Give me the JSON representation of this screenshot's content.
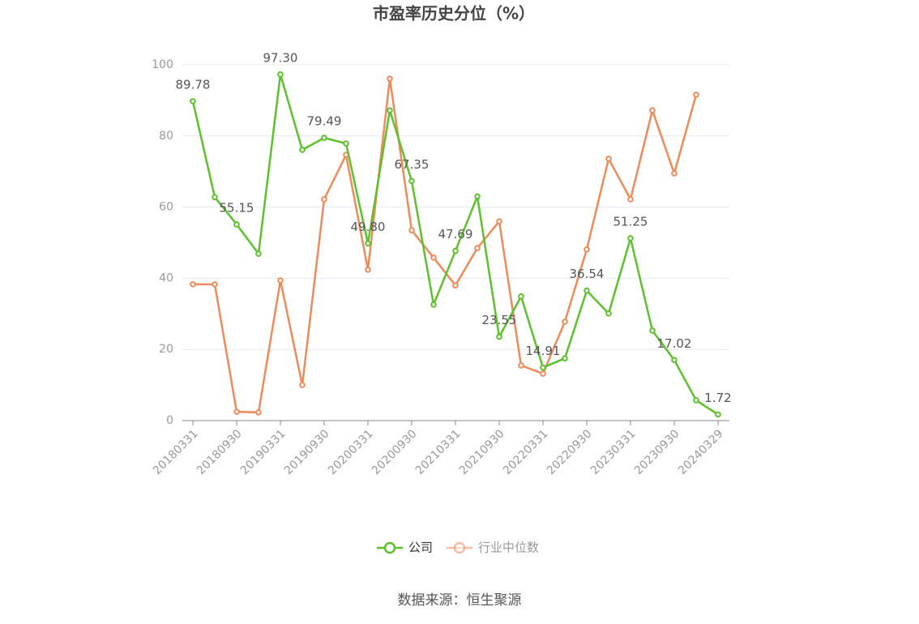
{
  "chart_data": {
    "type": "line",
    "title": "市盈率历史分位（%）",
    "categories": [
      "20180331",
      null,
      "20180930",
      null,
      "20190331",
      null,
      "20190930",
      null,
      "20200331",
      null,
      "20200930",
      null,
      "20210331",
      null,
      "20210930",
      null,
      "20220331",
      null,
      "20220930",
      null,
      "20230331",
      null,
      "20230930",
      null,
      "20240329"
    ],
    "series": [
      {
        "name": "公司",
        "color": "#5cc12c",
        "values": [
          89.78,
          62.8,
          55.15,
          46.9,
          97.3,
          76.1,
          79.49,
          77.9,
          49.8,
          87.2,
          67.35,
          32.6,
          47.69,
          63.0,
          23.55,
          34.9,
          14.91,
          17.5,
          36.54,
          30.1,
          51.25,
          25.3,
          17.02,
          5.7,
          1.72
        ],
        "value_labels": [
          "89.78",
          null,
          "55.15",
          null,
          "97.30",
          null,
          "79.49",
          null,
          "49.80",
          null,
          "67.35",
          null,
          "47.69",
          null,
          "23.55",
          null,
          "14.91",
          null,
          "36.54",
          null,
          "51.25",
          null,
          "17.02",
          null,
          "1.72"
        ]
      },
      {
        "name": "行业中位数",
        "color": "#ef8a5a",
        "values": [
          38.3,
          38.3,
          2.5,
          2.3,
          39.4,
          10.0,
          62.2,
          74.7,
          42.4,
          96.1,
          53.5,
          45.8,
          38.0,
          48.5,
          56.0,
          15.5,
          13.2,
          27.8,
          48.1,
          73.6,
          62.2,
          87.2,
          69.5,
          91.6,
          null
        ]
      }
    ],
    "ylim": [
      0,
      100
    ],
    "yticks": [
      0,
      20,
      40,
      60,
      80,
      100
    ],
    "grid": true,
    "legend": "bottom",
    "source": "数据来源：恒生聚源"
  }
}
